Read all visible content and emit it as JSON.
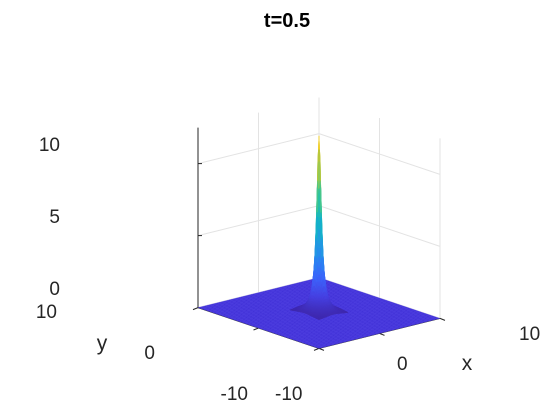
{
  "chart_data": {
    "type": "surface",
    "title": "t=0.5",
    "xlabel": "x",
    "ylabel": "y",
    "zlabel": "",
    "xlim": [
      -10,
      10
    ],
    "ylim": [
      -10,
      10
    ],
    "zlim": [
      0,
      12.5
    ],
    "x_ticks": [
      {
        "value": -10,
        "label": "-10"
      },
      {
        "value": 0,
        "label": "0"
      },
      {
        "value": 10,
        "label": "10"
      }
    ],
    "y_ticks": [
      {
        "value": -10,
        "label": "-10"
      },
      {
        "value": 0,
        "label": "0"
      },
      {
        "value": 10,
        "label": "10"
      }
    ],
    "z_ticks": [
      {
        "value": 0,
        "label": "0"
      },
      {
        "value": 5,
        "label": "5"
      },
      {
        "value": 10,
        "label": "10"
      }
    ],
    "peak": {
      "x": 0,
      "y": 0,
      "z": 12.3
    },
    "colormap": "parula",
    "base_color": "#3f2fd6",
    "grid": true,
    "box": "open"
  }
}
